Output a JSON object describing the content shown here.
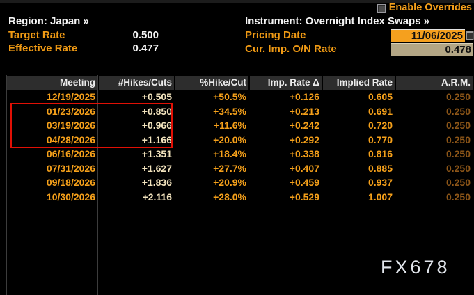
{
  "top": {
    "enable_overrides_label": "Enable Overrides",
    "region": "Region: Japan »",
    "instrument": "Instrument: Overnight Index Swaps »",
    "target_rate": {
      "label": "Target Rate",
      "value": "0.500"
    },
    "effective_rate": {
      "label": "Effective Rate",
      "value": "0.477"
    },
    "pricing_date": {
      "label": "Pricing Date",
      "value": "11/06/2025"
    },
    "cur_imp_on_rate": {
      "label": "Cur. Imp. O/N Rate",
      "value": "0.478"
    },
    "icons": {
      "checkbox": "checkbox-icon",
      "calendar": "calendar-icon"
    }
  },
  "table": {
    "columns": [
      "Meeting",
      "#Hikes/Cuts",
      "%Hike/Cut",
      "Imp. Rate Δ",
      "Implied Rate",
      "A.R.M."
    ],
    "rows": [
      [
        "12/19/2025",
        "+0.505",
        "+50.5%",
        "+0.126",
        "0.605",
        "0.250"
      ],
      [
        "01/23/2026",
        "+0.850",
        "+34.5%",
        "+0.213",
        "0.691",
        "0.250"
      ],
      [
        "03/19/2026",
        "+0.966",
        "+11.6%",
        "+0.242",
        "0.720",
        "0.250"
      ],
      [
        "04/28/2026",
        "+1.166",
        "+20.0%",
        "+0.292",
        "0.770",
        "0.250"
      ],
      [
        "06/16/2026",
        "+1.351",
        "+18.4%",
        "+0.338",
        "0.816",
        "0.250"
      ],
      [
        "07/31/2026",
        "+1.627",
        "+27.7%",
        "+0.407",
        "0.885",
        "0.250"
      ],
      [
        "09/18/2026",
        "+1.836",
        "+20.9%",
        "+0.459",
        "0.937",
        "0.250"
      ],
      [
        "10/30/2026",
        "+2.116",
        "+28.0%",
        "+0.529",
        "1.007",
        "0.250"
      ]
    ]
  },
  "annotation": {
    "highlighted_meetings": [
      "01/23/2026",
      "03/19/2026",
      "04/28/2026"
    ],
    "box_color": "#e01005"
  },
  "watermark": "FX678",
  "colors": {
    "background": "#000000",
    "amber_label": "#f09a14",
    "amber_value": "#f5a01a",
    "pale_value": "#f2e3bd",
    "dim_arm_value": "#8d5618",
    "white_text": "#f4f4f4",
    "header_bg": "#2d2d2d",
    "pricing_field_bg": "#f5a01e",
    "rate_field_bg": "#b3a685",
    "annotation_red": "#e01005"
  }
}
